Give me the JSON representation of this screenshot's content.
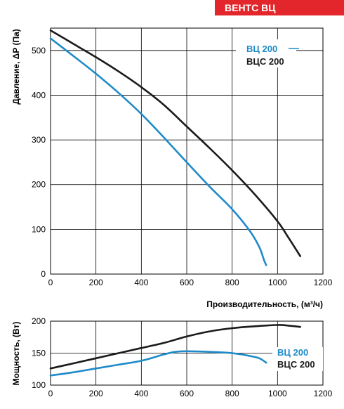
{
  "brand": {
    "label": "ВЕНТС ВЦ",
    "color": "#e3262b"
  },
  "colors": {
    "vc200": "#1f8bc8",
    "vcs200": "#1a1a1a",
    "grid": "#000000"
  },
  "chart_data": [
    {
      "type": "line",
      "title": "",
      "xlabel": "Производительность, (м³/ч)",
      "ylabel": "Давление, ΔP (Па)",
      "xlim": [
        0,
        1200
      ],
      "ylim": [
        0,
        550
      ],
      "xticks": [
        0,
        200,
        400,
        600,
        800,
        1000,
        1200
      ],
      "yticks": [
        0,
        100,
        200,
        300,
        400,
        500
      ],
      "grid": true,
      "legend": "top-right",
      "series": [
        {
          "name": "ВЦ 200",
          "color": "#1f8bc8",
          "x": [
            0,
            100,
            200,
            300,
            400,
            500,
            600,
            700,
            800,
            880,
            920,
            940,
            950
          ],
          "y": [
            527,
            488,
            448,
            405,
            358,
            305,
            250,
            196,
            145,
            95,
            60,
            32,
            20
          ]
        },
        {
          "name": "ВЦС 200",
          "color": "#1a1a1a",
          "x": [
            0,
            100,
            200,
            300,
            400,
            500,
            600,
            700,
            800,
            900,
            1000,
            1050,
            1100
          ],
          "y": [
            545,
            515,
            485,
            453,
            418,
            378,
            330,
            282,
            232,
            178,
            118,
            80,
            40
          ]
        }
      ]
    },
    {
      "type": "line",
      "title": "",
      "xlabel": "",
      "ylabel": "Мощность, (Вт)",
      "xlim": [
        0,
        1200
      ],
      "ylim": [
        100,
        200
      ],
      "xticks": [
        0,
        200,
        400,
        600,
        800,
        1000,
        1200
      ],
      "yticks": [
        100,
        150,
        200
      ],
      "grid": true,
      "legend": "right",
      "series": [
        {
          "name": "ВЦ 200",
          "color": "#1f8bc8",
          "x": [
            0,
            100,
            200,
            300,
            400,
            500,
            550,
            600,
            700,
            800,
            900,
            930,
            950
          ],
          "y": [
            115,
            120,
            126,
            132,
            138,
            148,
            152,
            153,
            152,
            150,
            144,
            140,
            135
          ]
        },
        {
          "name": "ВЦС 200",
          "color": "#1a1a1a",
          "x": [
            0,
            100,
            200,
            300,
            400,
            500,
            600,
            700,
            800,
            900,
            1000,
            1050,
            1100
          ],
          "y": [
            126,
            134,
            142,
            150,
            158,
            166,
            176,
            184,
            189,
            192,
            194,
            193,
            191
          ]
        }
      ]
    }
  ]
}
